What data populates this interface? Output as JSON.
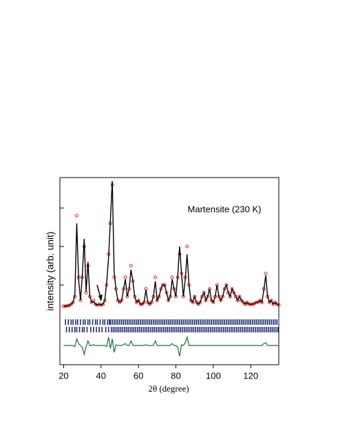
{
  "chart_data": {
    "type": "line",
    "annotation": "Martensite (230 K)",
    "xlabel": "2θ (degree)",
    "ylabel": "intensity (arb. unit)",
    "xlim": [
      18,
      135
    ],
    "ylim": [
      -1.07,
      3.79
    ],
    "xticks": [
      20,
      40,
      60,
      80,
      100,
      120
    ],
    "yticks": [
      1,
      2,
      3
    ],
    "x": [
      20,
      21,
      22,
      23,
      24,
      25,
      26,
      27,
      28,
      29,
      30,
      31,
      32,
      33,
      34,
      35,
      36,
      37,
      38,
      39,
      40,
      41,
      42,
      43,
      44,
      45,
      46,
      47,
      48,
      49,
      50,
      51,
      52,
      53,
      54,
      55,
      56,
      57,
      58,
      59,
      60,
      61,
      62,
      63,
      64,
      65,
      66,
      67,
      68,
      69,
      70,
      71,
      72,
      73,
      74,
      75,
      76,
      77,
      78,
      79,
      80,
      81,
      82,
      83,
      84,
      85,
      86,
      87,
      88,
      89,
      90,
      91,
      92,
      93,
      94,
      95,
      96,
      97,
      98,
      99,
      100,
      101,
      102,
      103,
      104,
      105,
      106,
      107,
      108,
      109,
      110,
      111,
      112,
      113,
      114,
      115,
      116,
      117,
      118,
      119,
      120,
      121,
      122,
      123,
      124,
      125,
      126,
      127,
      128,
      129,
      130,
      131,
      132,
      133,
      134,
      135
    ],
    "observed": [
      0.45,
      0.45,
      0.46,
      0.47,
      0.5,
      0.55,
      0.7,
      2.8,
      1.2,
      0.6,
      1.2,
      2.0,
      0.8,
      1.5,
      0.7,
      0.55,
      0.6,
      0.5,
      0.48,
      0.5,
      0.48,
      0.5,
      0.6,
      1.0,
      1.8,
      2.6,
      3.6,
      1.2,
      0.9,
      0.6,
      0.55,
      0.6,
      0.9,
      1.2,
      0.7,
      0.9,
      1.5,
      1.1,
      0.7,
      0.55,
      0.6,
      0.5,
      0.5,
      0.55,
      0.9,
      0.55,
      0.5,
      0.55,
      0.7,
      1.2,
      0.6,
      0.7,
      0.9,
      1.0,
      1.0,
      0.8,
      0.6,
      0.7,
      1.2,
      0.9,
      0.7,
      1.2,
      1.8,
      1.3,
      0.7,
      1.2,
      2.0,
      1.0,
      0.6,
      0.55,
      0.7,
      0.55,
      0.5,
      0.55,
      0.7,
      0.8,
      0.6,
      0.7,
      0.9,
      0.6,
      0.55,
      0.7,
      1.0,
      0.7,
      0.6,
      0.7,
      0.9,
      1.0,
      0.8,
      0.7,
      0.9,
      0.8,
      0.7,
      0.6,
      0.7,
      0.6,
      0.55,
      0.5,
      0.55,
      0.5,
      0.5,
      0.5,
      0.52,
      0.55,
      0.55,
      0.6,
      0.55,
      0.9,
      1.3,
      0.7,
      0.55,
      0.6,
      0.5,
      0.55,
      0.5,
      0.48
    ],
    "calculated": [
      0.45,
      0.45,
      0.46,
      0.47,
      0.5,
      0.55,
      0.72,
      2.6,
      1.15,
      0.6,
      1.25,
      2.2,
      0.82,
      1.6,
      0.7,
      0.55,
      0.58,
      0.5,
      0.48,
      0.5,
      0.48,
      0.5,
      0.6,
      1.05,
      1.7,
      2.7,
      3.7,
      1.35,
      0.88,
      0.6,
      0.55,
      0.6,
      0.88,
      1.15,
      0.7,
      0.9,
      1.4,
      1.1,
      0.7,
      0.55,
      0.6,
      0.5,
      0.5,
      0.55,
      0.88,
      0.55,
      0.5,
      0.55,
      0.7,
      1.1,
      0.6,
      0.7,
      0.9,
      1.0,
      1.0,
      0.8,
      0.6,
      0.7,
      1.15,
      0.9,
      0.7,
      1.25,
      2.0,
      1.3,
      0.7,
      1.15,
      1.8,
      1.0,
      0.6,
      0.55,
      0.7,
      0.55,
      0.5,
      0.55,
      0.7,
      0.8,
      0.6,
      0.7,
      0.9,
      0.6,
      0.55,
      0.7,
      1.0,
      0.7,
      0.6,
      0.7,
      0.9,
      1.0,
      0.8,
      0.7,
      0.9,
      0.8,
      0.7,
      0.6,
      0.7,
      0.6,
      0.55,
      0.5,
      0.55,
      0.5,
      0.5,
      0.5,
      0.52,
      0.55,
      0.55,
      0.6,
      0.55,
      0.88,
      1.25,
      0.7,
      0.55,
      0.6,
      0.5,
      0.55,
      0.5,
      0.48
    ],
    "difference": [
      -0.57,
      -0.57,
      -0.57,
      -0.57,
      -0.57,
      -0.57,
      -0.6,
      -0.4,
      -0.52,
      -0.57,
      -0.62,
      -0.8,
      -0.6,
      -0.45,
      -0.57,
      -0.57,
      -0.55,
      -0.57,
      -0.57,
      -0.57,
      -0.57,
      -0.57,
      -0.57,
      -0.6,
      -0.35,
      -0.65,
      -0.4,
      -0.75,
      -0.55,
      -0.57,
      -0.57,
      -0.57,
      -0.55,
      -0.52,
      -0.57,
      -0.57,
      -0.45,
      -0.57,
      -0.57,
      -0.57,
      -0.57,
      -0.57,
      -0.57,
      -0.57,
      -0.55,
      -0.57,
      -0.57,
      -0.57,
      -0.57,
      -0.45,
      -0.57,
      -0.57,
      -0.57,
      -0.57,
      -0.57,
      -0.57,
      -0.57,
      -0.57,
      -0.52,
      -0.57,
      -0.57,
      -0.62,
      -0.85,
      -0.55,
      -0.57,
      -0.5,
      -0.35,
      -0.57,
      -0.57,
      -0.57,
      -0.57,
      -0.57,
      -0.57,
      -0.57,
      -0.57,
      -0.57,
      -0.57,
      -0.57,
      -0.57,
      -0.57,
      -0.57,
      -0.57,
      -0.57,
      -0.57,
      -0.57,
      -0.57,
      -0.57,
      -0.57,
      -0.57,
      -0.57,
      -0.57,
      -0.57,
      -0.57,
      -0.57,
      -0.57,
      -0.57,
      -0.57,
      -0.57,
      -0.57,
      -0.57,
      -0.57,
      -0.57,
      -0.57,
      -0.57,
      -0.57,
      -0.57,
      -0.57,
      -0.52,
      -0.5,
      -0.57,
      -0.57,
      -0.57,
      -0.57,
      -0.57,
      -0.57,
      -0.57
    ],
    "reflections": [
      [
        21,
        22.5,
        24,
        25,
        26.5,
        27.5,
        29,
        30.5,
        31.5,
        33,
        34,
        35.5,
        37,
        38,
        39.5,
        41,
        42,
        43.5,
        44.5,
        45,
        46,
        47,
        48,
        49,
        50,
        51,
        52,
        53,
        54,
        55,
        56,
        57,
        58,
        59,
        60,
        61,
        62,
        63,
        64,
        65,
        66,
        67,
        68,
        69,
        70,
        71,
        72,
        73,
        74,
        75,
        76,
        77,
        78,
        79,
        80,
        81,
        82,
        83,
        84,
        85,
        86,
        87,
        88,
        89,
        90,
        91,
        92,
        93,
        94,
        95,
        96,
        97,
        98,
        99,
        100,
        101,
        102,
        103,
        104,
        105,
        106,
        107,
        108,
        109,
        110,
        111,
        112,
        113,
        114,
        115,
        116,
        117,
        118,
        119,
        120,
        121,
        122,
        123,
        124,
        125,
        126,
        127,
        128,
        129,
        130,
        131,
        132,
        133,
        134
      ],
      [
        21.5,
        23,
        24.5,
        26,
        27,
        28.5,
        30,
        31,
        32.5,
        34.5,
        36,
        37.5,
        39,
        40.5,
        42.5,
        44,
        45.5,
        46.5,
        47.5,
        48.5,
        49.5,
        50.5,
        51.5,
        52.5,
        53.5,
        54.5,
        55.5,
        56.5,
        57.5,
        58.5,
        59.5,
        60.5,
        61.5,
        62.5,
        63.5,
        64.5,
        65.5,
        66.5,
        67.5,
        68.5,
        69.5,
        70.5,
        71.5,
        72.5,
        73.5,
        74.5,
        75.5,
        76.5,
        77.5,
        78.5,
        79.5,
        80.5,
        81.5,
        82.5,
        83.5,
        84.5,
        85.5,
        86.5,
        87.5,
        88.5,
        89.5,
        90.5,
        91.5,
        92.5,
        93.5,
        94.5,
        95.5,
        96.5,
        97.5,
        98.5,
        99.5,
        100.5,
        101.5,
        102.5,
        103.5,
        104.5,
        105.5,
        106.5,
        107.5,
        108.5,
        109.5,
        110.5,
        111.5,
        112.5,
        113.5,
        114.5,
        115.5,
        116.5,
        117.5,
        118.5,
        119.5,
        120.5,
        121.5,
        122.5,
        123.5,
        124.5,
        125.5,
        126.5,
        127.5,
        128.5,
        129.5,
        130.5,
        131.5,
        132.5,
        133.5,
        134.5
      ]
    ],
    "observed_color": "#e3211c",
    "calculated_color": "#000000",
    "difference_color": "#1b6b3a",
    "reflection_color": "#1a2a6e"
  }
}
